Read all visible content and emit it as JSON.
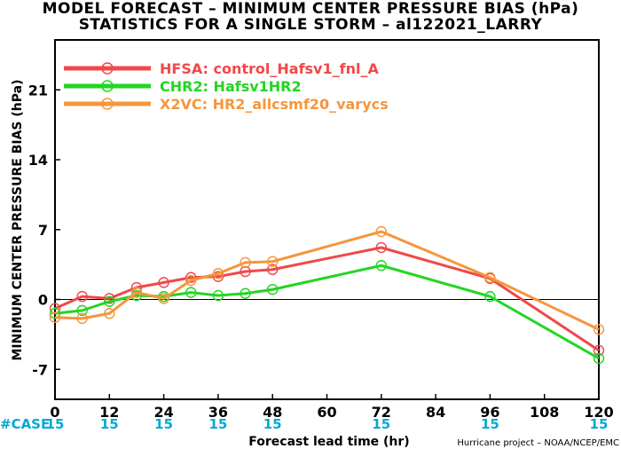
{
  "title_line1": "MODEL FORECAST – MINIMUM CENTER PRESSURE BIAS (hPa)",
  "title_line2": "STATISTICS FOR A SINGLE STORM – al122021_LARRY",
  "ylabel": "MINIMUM CENTER PRESSURE BIAS (hPa)",
  "xlabel": "Forecast lead time (hr)",
  "case_label": "#CASE",
  "credit": "Hurricane project – NOAA/NCEP/EMC",
  "chart_data": {
    "type": "line",
    "xlim": [
      0,
      120
    ],
    "ylim": [
      -10,
      26
    ],
    "x_ticks": [
      "0",
      "12",
      "24",
      "36",
      "48",
      "60",
      "72",
      "84",
      "96",
      "108",
      "120"
    ],
    "y_ticks": [
      "-7",
      "0",
      "7",
      "14",
      "21"
    ],
    "case_counts": [
      {
        "x": 0,
        "label": "15"
      },
      {
        "x": 12,
        "label": "15"
      },
      {
        "x": 24,
        "label": "15"
      },
      {
        "x": 36,
        "label": "15"
      },
      {
        "x": 48,
        "label": "15"
      },
      {
        "x": 72,
        "label": "15"
      },
      {
        "x": 96,
        "label": "15"
      },
      {
        "x": 120,
        "label": "15"
      }
    ],
    "legend_position": "top-left",
    "series": [
      {
        "name": "HFSA: control_Hafsv1_fnl_A",
        "color": "#f04848",
        "points": [
          [
            0,
            -0.9
          ],
          [
            6,
            0.3
          ],
          [
            12,
            0.1
          ],
          [
            18,
            1.2
          ],
          [
            24,
            1.7
          ],
          [
            30,
            2.2
          ],
          [
            36,
            2.3
          ],
          [
            42,
            2.8
          ],
          [
            48,
            3.0
          ],
          [
            72,
            5.2
          ],
          [
            96,
            2.1
          ],
          [
            120,
            -5.1
          ]
        ]
      },
      {
        "name": "CHR2: Hafsv1HR2",
        "color": "#22d622",
        "points": [
          [
            0,
            -1.4
          ],
          [
            6,
            -1.1
          ],
          [
            12,
            -0.2
          ],
          [
            18,
            0.4
          ],
          [
            24,
            0.3
          ],
          [
            30,
            0.7
          ],
          [
            36,
            0.4
          ],
          [
            42,
            0.6
          ],
          [
            48,
            1.0
          ],
          [
            72,
            3.4
          ],
          [
            96,
            0.3
          ],
          [
            120,
            -5.9
          ]
        ]
      },
      {
        "name": "X2VC: HR2_allcsmf20_varycs",
        "color": "#f5963c",
        "points": [
          [
            0,
            -1.8
          ],
          [
            6,
            -1.9
          ],
          [
            12,
            -1.4
          ],
          [
            18,
            0.7
          ],
          [
            24,
            0.1
          ],
          [
            30,
            1.9
          ],
          [
            36,
            2.6
          ],
          [
            42,
            3.7
          ],
          [
            48,
            3.8
          ],
          [
            72,
            6.8
          ],
          [
            96,
            2.2
          ],
          [
            120,
            -3.0
          ]
        ]
      }
    ]
  }
}
